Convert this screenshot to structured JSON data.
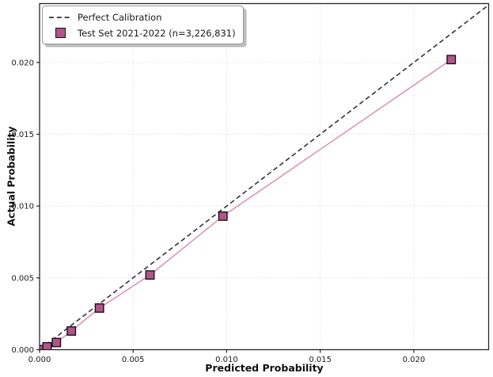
{
  "figure": {
    "background": "#ffffff"
  },
  "chart_data": {
    "type": "line",
    "title": "",
    "xlabel": "Predicted Probability",
    "ylabel": "Actual Probability",
    "xlim": [
      0,
      0.024
    ],
    "ylim": [
      0,
      0.0241
    ],
    "xticks": [
      0,
      0.005,
      0.01,
      0.015,
      0.02
    ],
    "yticks": [
      0,
      0.005,
      0.01,
      0.015,
      0.02
    ],
    "tick_decimals": 3,
    "grid": true,
    "grid_style": "dotted",
    "grid_color": "#d2d2d2",
    "legend_position": "upper-left",
    "colors": {
      "spine": "#262626",
      "tick_text": "#1a1a1a"
    },
    "series": [
      {
        "name": "Perfect Calibration",
        "type": "line",
        "line_style": "dashed",
        "color": "#333333",
        "x": [
          0,
          0.0241
        ],
        "y": [
          0,
          0.0241
        ]
      },
      {
        "name": "Test Set 2021-2022 (n=3,226,831)",
        "type": "line-marker",
        "marker": "square",
        "line_color": "#d88fb5",
        "marker_fill": "#b05689",
        "marker_edge": "#1c0f1a",
        "x": [
          0.0001,
          0.0004,
          0.0009,
          0.0017,
          0.0032,
          0.0059,
          0.0098,
          0.022
        ],
        "y": [
          0.0,
          0.0002,
          0.0005,
          0.0013,
          0.0029,
          0.0052,
          0.0093,
          0.0202
        ]
      }
    ]
  }
}
